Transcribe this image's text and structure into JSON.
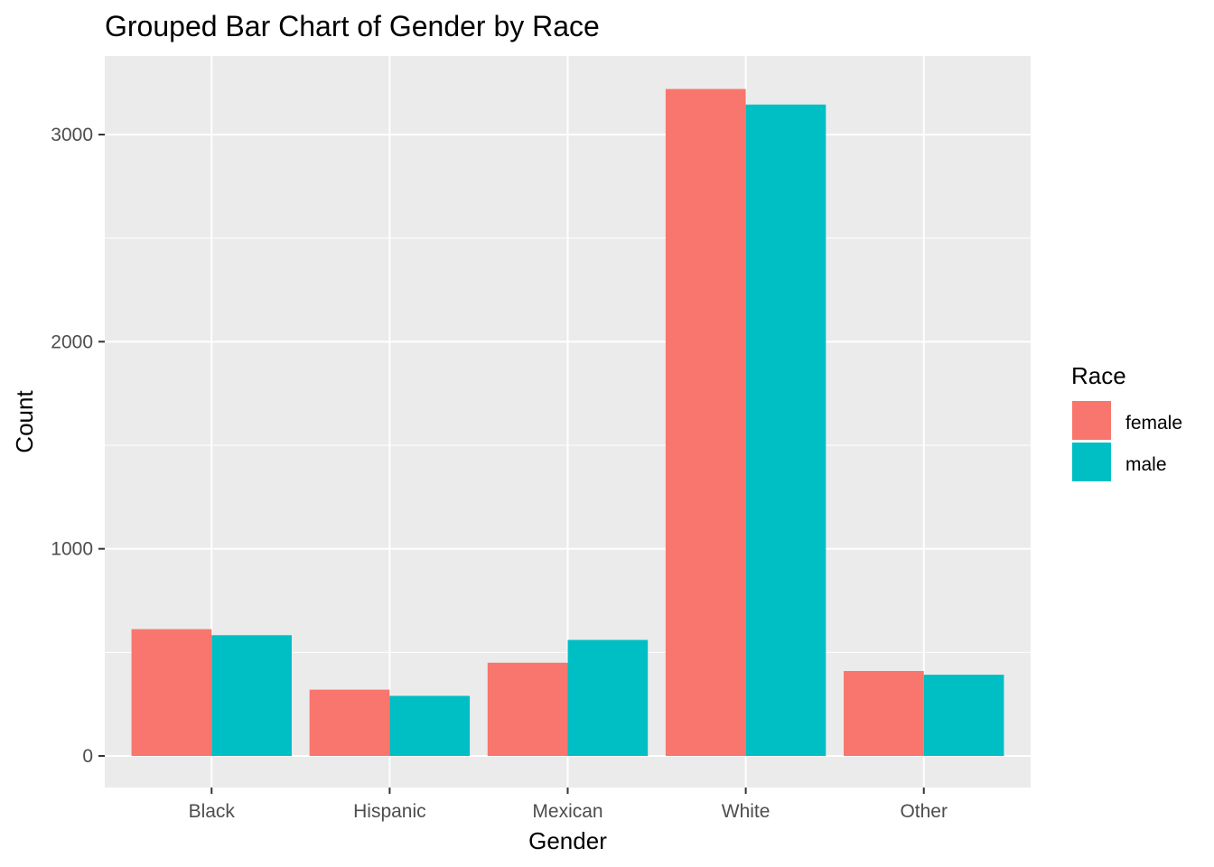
{
  "chart_data": {
    "type": "bar",
    "title": "Grouped Bar Chart of Gender by Race",
    "xlabel": "Gender",
    "ylabel": "Count",
    "categories": [
      "Black",
      "Hispanic",
      "Mexican",
      "White",
      "Other"
    ],
    "series": [
      {
        "name": "female",
        "values": [
          612,
          320,
          450,
          3220,
          410
        ]
      },
      {
        "name": "male",
        "values": [
          583,
          290,
          560,
          3145,
          392
        ]
      }
    ],
    "ylim": [
      -160,
      3390
    ],
    "yticks": [
      0,
      1000,
      2000,
      3000
    ],
    "ytick_labels": [
      "0",
      "1000",
      "2000",
      "3000"
    ],
    "grid": true,
    "legend": {
      "title": "Race",
      "position": "right"
    },
    "colors": {
      "female": "#F8766D",
      "male": "#00BFC4",
      "panel": "#EBEBEB",
      "grid": "#FFFFFF"
    }
  }
}
